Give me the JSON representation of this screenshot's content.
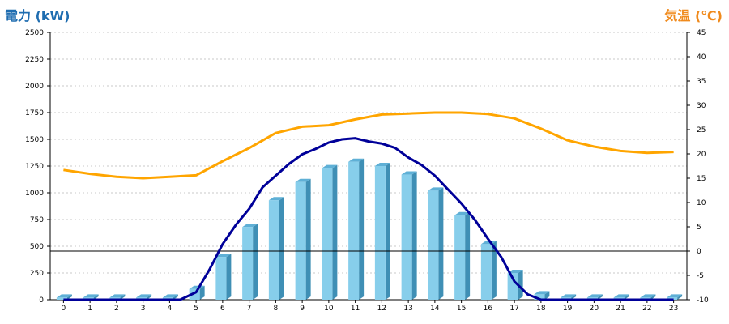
{
  "colors": {
    "bar_front": "#87CEEB",
    "bar_side": "#3f8fb5",
    "bar_top": "#5fb0d6",
    "power_line": "#000099",
    "temp_line": "#FFA500",
    "left_title": "#1F6DB0",
    "right_title": "#F08A1C",
    "grid": "#c8c8c8"
  },
  "chart_data": {
    "type": "bar+line",
    "title_left": "電力 (kW)",
    "title_right": "気温 (℃)",
    "categories": [
      "0",
      "1",
      "2",
      "3",
      "4",
      "5",
      "6",
      "7",
      "8",
      "9",
      "10",
      "11",
      "12",
      "13",
      "14",
      "15",
      "16",
      "17",
      "18",
      "19",
      "20",
      "21",
      "22",
      "23"
    ],
    "y_left": {
      "min": 0,
      "max": 2500,
      "ticks": [
        0,
        250,
        500,
        750,
        1000,
        1250,
        1500,
        1750,
        2000,
        2250,
        2500
      ]
    },
    "y_right": {
      "min": -10,
      "max": 45,
      "ticks": [
        -10,
        -5,
        0,
        5,
        10,
        15,
        20,
        25,
        30,
        35,
        40,
        45
      ]
    },
    "grid": true,
    "bars": {
      "axis": "left",
      "values": [
        20,
        20,
        20,
        20,
        20,
        100,
        400,
        680,
        930,
        1100,
        1230,
        1290,
        1250,
        1170,
        1020,
        790,
        520,
        250,
        50,
        20,
        20,
        20,
        20,
        20
      ]
    },
    "power_line": {
      "axis": "left",
      "x": [
        0,
        1,
        2,
        3,
        4,
        4.4,
        5,
        5.5,
        6,
        6.5,
        7,
        7.5,
        8,
        8.5,
        9,
        9.5,
        10,
        10.5,
        11,
        11.5,
        12,
        12.5,
        13,
        13.5,
        14,
        14.5,
        15,
        15.5,
        16,
        16.5,
        17,
        17.5,
        18,
        19,
        20,
        21,
        22,
        23
      ],
      "y": [
        0,
        0,
        0,
        0,
        0,
        0,
        70,
        280,
        520,
        700,
        850,
        1050,
        1160,
        1270,
        1360,
        1410,
        1470,
        1500,
        1510,
        1480,
        1460,
        1420,
        1330,
        1260,
        1160,
        1030,
        900,
        750,
        570,
        400,
        170,
        50,
        0,
        0,
        0,
        0,
        0,
        0
      ]
    },
    "temperature_line": {
      "axis": "right",
      "x": [
        0,
        1,
        2,
        3,
        4,
        5,
        6,
        7,
        8,
        9,
        10,
        11,
        12,
        13,
        14,
        15,
        16,
        17,
        18,
        19,
        20,
        21,
        22,
        23
      ],
      "y": [
        16.7,
        15.9,
        15.3,
        15.0,
        15.3,
        15.6,
        18.5,
        21.2,
        24.3,
        25.6,
        25.9,
        27.1,
        28.1,
        28.3,
        28.5,
        28.5,
        28.2,
        27.3,
        25.2,
        22.8,
        21.5,
        20.6,
        20.2,
        20.4
      ]
    },
    "baseline_zero_right": true
  }
}
